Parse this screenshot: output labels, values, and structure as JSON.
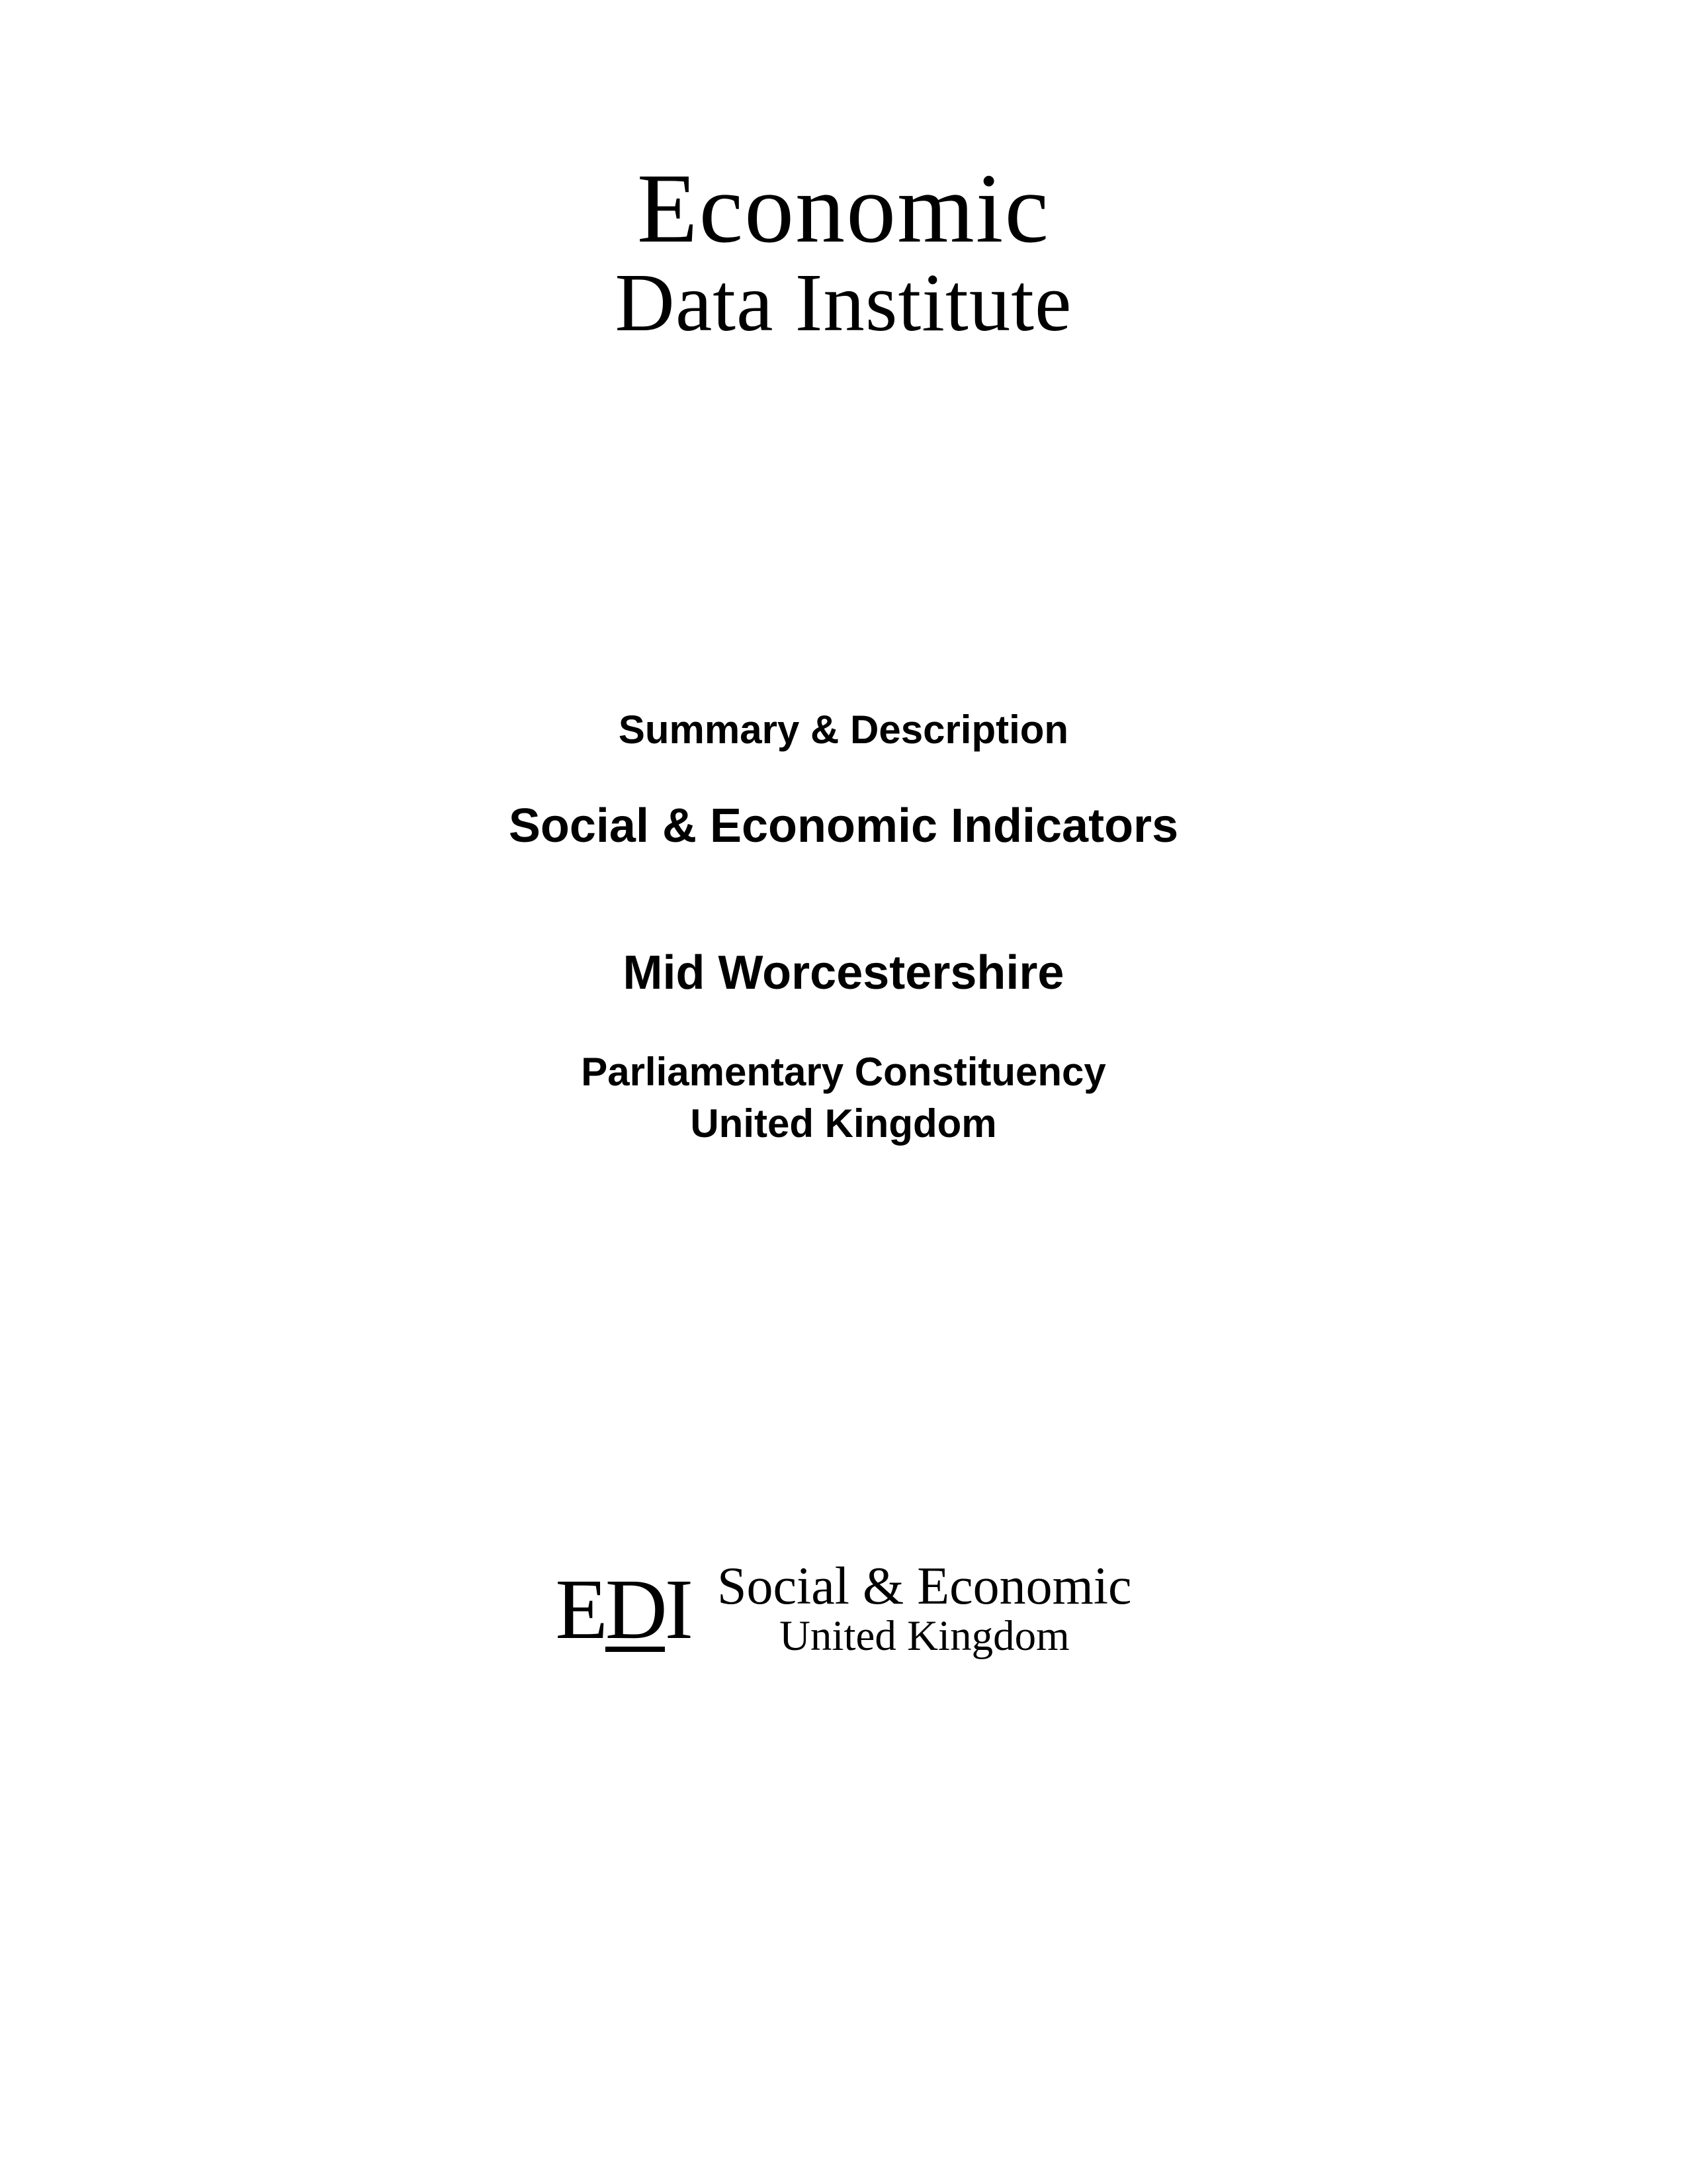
{
  "topLogo": {
    "line1": "Economic",
    "line2": "Data Institute"
  },
  "content": {
    "summary": "Summary & Description",
    "title": "Social & Economic Indicators",
    "region": "Mid Worcestershire",
    "subtitle1": "Parliamentary Constituency",
    "subtitle2": "United Kingdom"
  },
  "bottomLogo": {
    "mark_e": "E",
    "mark_d": "D",
    "mark_i": "I",
    "line1": "Social & Economic",
    "line2": "United Kingdom"
  },
  "colors": {
    "background": "#ffffff",
    "text": "#000000"
  }
}
